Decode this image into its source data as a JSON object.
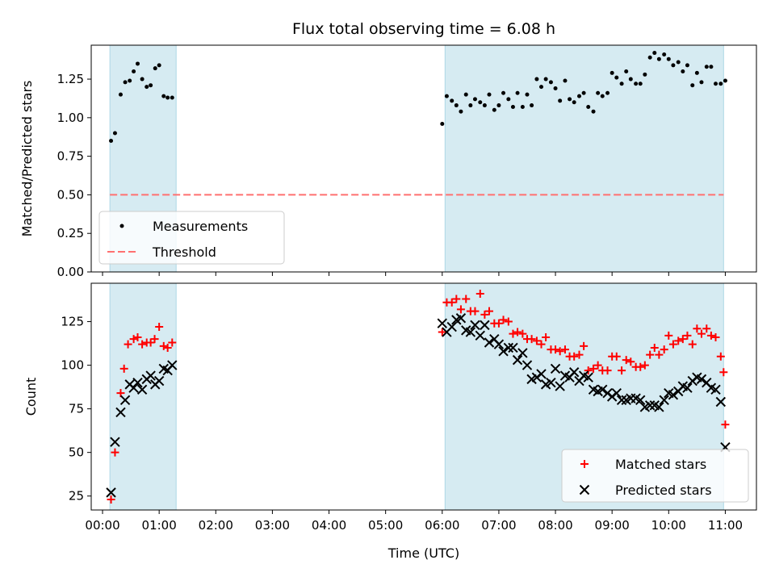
{
  "chart_data": [
    {
      "type": "scatter",
      "title": "Flux total observing time = 6.08 h",
      "xlabel": "",
      "ylabel": "Matched/Predicted stars",
      "xlim": [
        -0.2,
        11.55
      ],
      "ylim": [
        0,
        1.47
      ],
      "yticks": [
        0.0,
        0.25,
        0.5,
        0.75,
        1.0,
        1.25
      ],
      "ytick_labels": [
        "0.00",
        "0.25",
        "0.50",
        "0.75",
        "1.00",
        "1.25"
      ],
      "shaded_intervals": [
        [
          0.13,
          1.3
        ],
        [
          6.05,
          10.97
        ]
      ],
      "threshold": 0.5,
      "legend_position": "lower-left",
      "legend": [
        {
          "label": "Measurements",
          "marker": "dot",
          "color": "#000000"
        },
        {
          "label": "Threshold",
          "marker": "dashed-line",
          "color": "#ff7070"
        }
      ],
      "series": [
        {
          "name": "Measurements",
          "color": "#000000",
          "points": [
            [
              0.15,
              0.85
            ],
            [
              0.22,
              0.9
            ],
            [
              0.32,
              1.15
            ],
            [
              0.4,
              1.23
            ],
            [
              0.48,
              1.24
            ],
            [
              0.55,
              1.3
            ],
            [
              0.62,
              1.35
            ],
            [
              0.7,
              1.25
            ],
            [
              0.78,
              1.2
            ],
            [
              0.85,
              1.21
            ],
            [
              0.93,
              1.32
            ],
            [
              1.0,
              1.34
            ],
            [
              1.08,
              1.14
            ],
            [
              1.15,
              1.13
            ],
            [
              1.23,
              1.13
            ],
            [
              6.0,
              0.96
            ],
            [
              6.08,
              1.14
            ],
            [
              6.17,
              1.11
            ],
            [
              6.25,
              1.08
            ],
            [
              6.33,
              1.04
            ],
            [
              6.42,
              1.15
            ],
            [
              6.5,
              1.08
            ],
            [
              6.58,
              1.12
            ],
            [
              6.67,
              1.1
            ],
            [
              6.75,
              1.08
            ],
            [
              6.83,
              1.15
            ],
            [
              6.92,
              1.05
            ],
            [
              7.0,
              1.08
            ],
            [
              7.08,
              1.16
            ],
            [
              7.17,
              1.12
            ],
            [
              7.25,
              1.07
            ],
            [
              7.33,
              1.16
            ],
            [
              7.42,
              1.07
            ],
            [
              7.5,
              1.15
            ],
            [
              7.58,
              1.08
            ],
            [
              7.67,
              1.25
            ],
            [
              7.75,
              1.2
            ],
            [
              7.83,
              1.25
            ],
            [
              7.92,
              1.23
            ],
            [
              8.0,
              1.19
            ],
            [
              8.08,
              1.11
            ],
            [
              8.17,
              1.24
            ],
            [
              8.25,
              1.12
            ],
            [
              8.33,
              1.1
            ],
            [
              8.42,
              1.14
            ],
            [
              8.5,
              1.16
            ],
            [
              8.58,
              1.07
            ],
            [
              8.67,
              1.04
            ],
            [
              8.75,
              1.16
            ],
            [
              8.83,
              1.14
            ],
            [
              8.92,
              1.16
            ],
            [
              9.0,
              1.29
            ],
            [
              9.08,
              1.26
            ],
            [
              9.17,
              1.22
            ],
            [
              9.25,
              1.3
            ],
            [
              9.33,
              1.25
            ],
            [
              9.42,
              1.22
            ],
            [
              9.5,
              1.22
            ],
            [
              9.58,
              1.28
            ],
            [
              9.67,
              1.39
            ],
            [
              9.75,
              1.42
            ],
            [
              9.83,
              1.38
            ],
            [
              9.92,
              1.41
            ],
            [
              10.0,
              1.38
            ],
            [
              10.08,
              1.34
            ],
            [
              10.17,
              1.36
            ],
            [
              10.25,
              1.3
            ],
            [
              10.33,
              1.34
            ],
            [
              10.42,
              1.21
            ],
            [
              10.5,
              1.29
            ],
            [
              10.58,
              1.23
            ],
            [
              10.67,
              1.33
            ],
            [
              10.75,
              1.33
            ],
            [
              10.83,
              1.22
            ],
            [
              10.92,
              1.22
            ],
            [
              11.0,
              1.24
            ]
          ]
        }
      ]
    },
    {
      "type": "scatter",
      "title": "",
      "xlabel": "Time (UTC)",
      "ylabel": "Count",
      "xlim": [
        -0.2,
        11.55
      ],
      "ylim": [
        17,
        147
      ],
      "xticks": [
        0,
        1,
        2,
        3,
        4,
        5,
        6,
        7,
        8,
        9,
        10,
        11
      ],
      "xtick_labels": [
        "00:00",
        "01:00",
        "02:00",
        "03:00",
        "04:00",
        "05:00",
        "06:00",
        "07:00",
        "08:00",
        "09:00",
        "10:00",
        "11:00"
      ],
      "yticks": [
        25,
        50,
        75,
        100,
        125
      ],
      "ytick_labels": [
        "25",
        "50",
        "75",
        "100",
        "125"
      ],
      "shaded_intervals": [
        [
          0.13,
          1.3
        ],
        [
          6.05,
          10.97
        ]
      ],
      "legend_position": "lower-right",
      "legend": [
        {
          "label": "Matched stars",
          "marker": "plus",
          "color": "#ff0000"
        },
        {
          "label": "Predicted stars",
          "marker": "x",
          "color": "#000000"
        }
      ],
      "series": [
        {
          "name": "Matched stars",
          "color": "#ff0000",
          "marker": "plus",
          "points": [
            [
              0.15,
              23
            ],
            [
              0.22,
              50
            ],
            [
              0.32,
              84
            ],
            [
              0.38,
              98
            ],
            [
              0.45,
              112
            ],
            [
              0.55,
              115
            ],
            [
              0.62,
              116
            ],
            [
              0.7,
              112
            ],
            [
              0.78,
              113
            ],
            [
              0.85,
              113
            ],
            [
              0.92,
              115
            ],
            [
              1.0,
              122
            ],
            [
              1.08,
              111
            ],
            [
              1.15,
              110
            ],
            [
              1.23,
              113
            ],
            [
              6.0,
              119
            ],
            [
              6.08,
              136
            ],
            [
              6.17,
              136
            ],
            [
              6.25,
              138
            ],
            [
              6.33,
              132
            ],
            [
              6.42,
              138
            ],
            [
              6.5,
              131
            ],
            [
              6.58,
              131
            ],
            [
              6.67,
              141
            ],
            [
              6.75,
              129
            ],
            [
              6.83,
              131
            ],
            [
              6.92,
              124
            ],
            [
              7.0,
              124
            ],
            [
              7.08,
              126
            ],
            [
              7.17,
              125
            ],
            [
              7.25,
              118
            ],
            [
              7.33,
              119
            ],
            [
              7.42,
              118
            ],
            [
              7.5,
              115
            ],
            [
              7.58,
              115
            ],
            [
              7.67,
              114
            ],
            [
              7.75,
              112
            ],
            [
              7.83,
              116
            ],
            [
              7.92,
              109
            ],
            [
              8.0,
              109
            ],
            [
              8.08,
              108
            ],
            [
              8.17,
              109
            ],
            [
              8.25,
              105
            ],
            [
              8.33,
              105
            ],
            [
              8.42,
              106
            ],
            [
              8.5,
              111
            ],
            [
              8.58,
              97
            ],
            [
              8.67,
              98
            ],
            [
              8.75,
              100
            ],
            [
              8.83,
              97
            ],
            [
              8.92,
              97
            ],
            [
              9.0,
              105
            ],
            [
              9.08,
              105
            ],
            [
              9.17,
              97
            ],
            [
              9.25,
              103
            ],
            [
              9.33,
              102
            ],
            [
              9.42,
              99
            ],
            [
              9.5,
              99
            ],
            [
              9.58,
              100
            ],
            [
              9.67,
              106
            ],
            [
              9.75,
              110
            ],
            [
              9.83,
              106
            ],
            [
              9.92,
              109
            ],
            [
              10.0,
              117
            ],
            [
              10.08,
              112
            ],
            [
              10.17,
              114
            ],
            [
              10.25,
              115
            ],
            [
              10.33,
              117
            ],
            [
              10.42,
              112
            ],
            [
              10.5,
              121
            ],
            [
              10.58,
              118
            ],
            [
              10.67,
              121
            ],
            [
              10.75,
              117
            ],
            [
              10.83,
              116
            ],
            [
              10.92,
              105
            ],
            [
              10.97,
              96
            ],
            [
              11.0,
              66
            ]
          ]
        },
        {
          "name": "Predicted stars",
          "color": "#000000",
          "marker": "x",
          "points": [
            [
              0.15,
              27
            ],
            [
              0.22,
              56
            ],
            [
              0.32,
              73
            ],
            [
              0.4,
              80
            ],
            [
              0.48,
              89
            ],
            [
              0.55,
              87
            ],
            [
              0.62,
              90
            ],
            [
              0.7,
              86
            ],
            [
              0.78,
              92
            ],
            [
              0.85,
              94
            ],
            [
              0.93,
              89
            ],
            [
              1.0,
              91
            ],
            [
              1.08,
              98
            ],
            [
              1.15,
              97
            ],
            [
              1.23,
              100
            ],
            [
              6.0,
              124
            ],
            [
              6.08,
              119
            ],
            [
              6.17,
              122
            ],
            [
              6.25,
              126
            ],
            [
              6.33,
              127
            ],
            [
              6.42,
              120
            ],
            [
              6.5,
              119
            ],
            [
              6.58,
              123
            ],
            [
              6.67,
              117
            ],
            [
              6.75,
              123
            ],
            [
              6.83,
              113
            ],
            [
              6.92,
              115
            ],
            [
              7.0,
              112
            ],
            [
              7.08,
              108
            ],
            [
              7.17,
              110
            ],
            [
              7.25,
              110
            ],
            [
              7.33,
              103
            ],
            [
              7.42,
              107
            ],
            [
              7.5,
              100
            ],
            [
              7.58,
              92
            ],
            [
              7.67,
              93
            ],
            [
              7.75,
              95
            ],
            [
              7.83,
              89
            ],
            [
              7.92,
              90
            ],
            [
              8.0,
              98
            ],
            [
              8.08,
              88
            ],
            [
              8.17,
              94
            ],
            [
              8.25,
              93
            ],
            [
              8.33,
              96
            ],
            [
              8.42,
              91
            ],
            [
              8.5,
              94
            ],
            [
              8.58,
              93
            ],
            [
              8.67,
              86
            ],
            [
              8.75,
              85
            ],
            [
              8.83,
              86
            ],
            [
              8.92,
              84
            ],
            [
              9.0,
              82
            ],
            [
              9.08,
              84
            ],
            [
              9.17,
              80
            ],
            [
              9.25,
              80
            ],
            [
              9.33,
              81
            ],
            [
              9.42,
              81
            ],
            [
              9.5,
              80
            ],
            [
              9.58,
              76
            ],
            [
              9.67,
              77
            ],
            [
              9.75,
              77
            ],
            [
              9.83,
              76
            ],
            [
              9.92,
              80
            ],
            [
              10.0,
              84
            ],
            [
              10.08,
              83
            ],
            [
              10.17,
              85
            ],
            [
              10.25,
              88
            ],
            [
              10.33,
              87
            ],
            [
              10.42,
              91
            ],
            [
              10.5,
              93
            ],
            [
              10.58,
              92
            ],
            [
              10.67,
              90
            ],
            [
              10.75,
              87
            ],
            [
              10.83,
              86
            ],
            [
              10.92,
              79
            ],
            [
              11.0,
              53
            ]
          ]
        }
      ]
    }
  ]
}
